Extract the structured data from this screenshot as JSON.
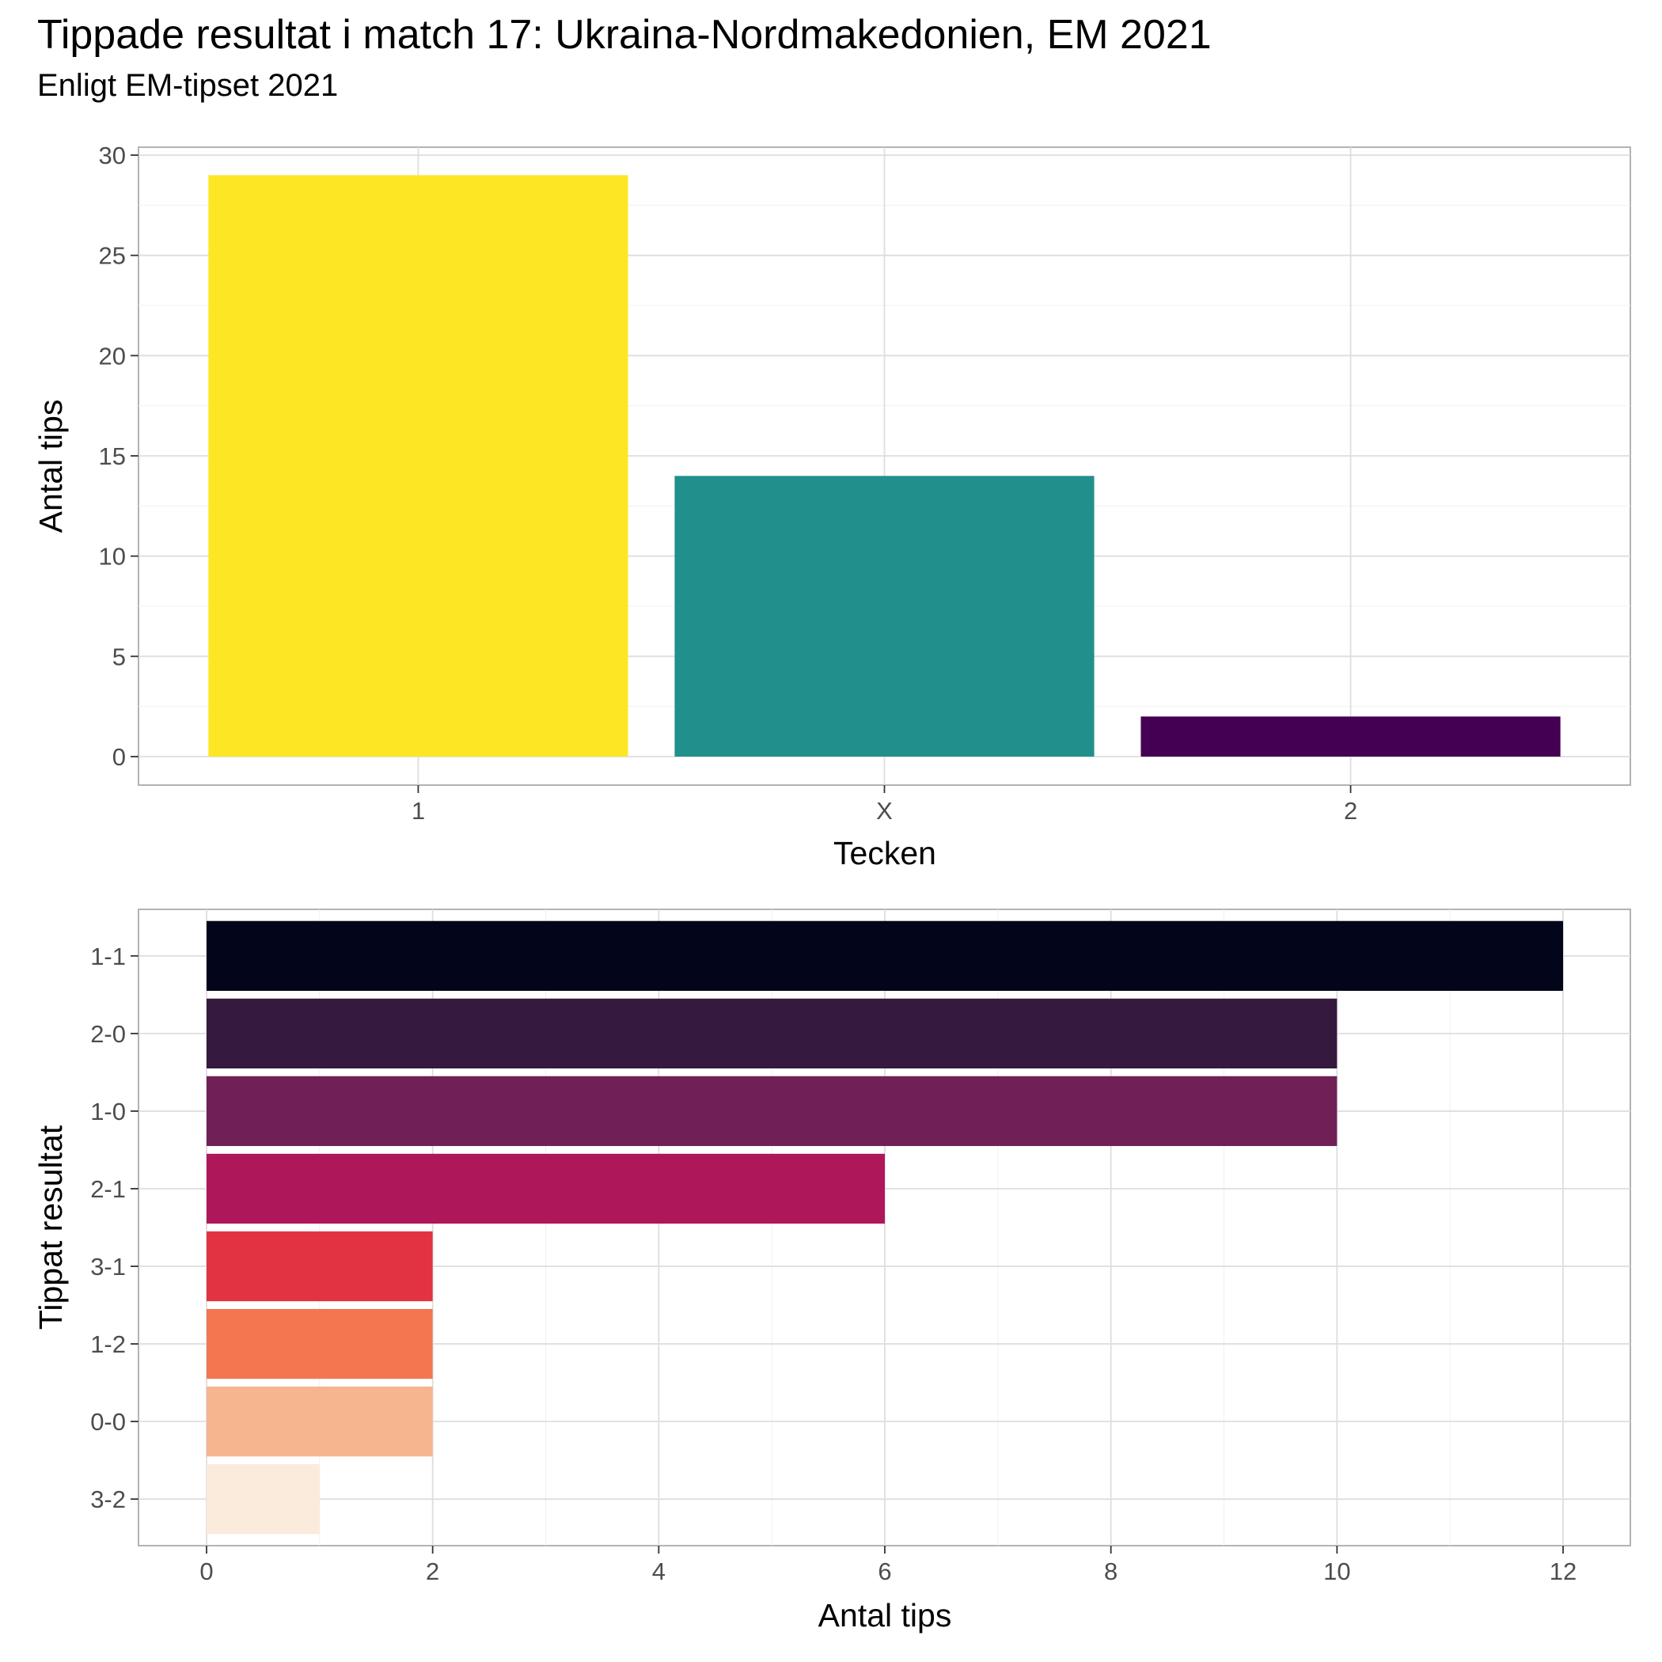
{
  "header": {
    "title": "Tippade resultat i match 17: Ukraina-Nordmakedonien, EM 2021",
    "subtitle": "Enligt EM-tipset 2021"
  },
  "chart_data": [
    {
      "type": "bar",
      "orientation": "vertical",
      "categories": [
        "1",
        "X",
        "2"
      ],
      "values": [
        29,
        14,
        2
      ],
      "colors": [
        "#FDE725",
        "#21908C",
        "#440154"
      ],
      "xlabel": "Tecken",
      "ylabel": "Antal tips",
      "ylim": [
        0,
        30
      ],
      "yticks": [
        0,
        5,
        10,
        15,
        20,
        25,
        30
      ],
      "grid": true
    },
    {
      "type": "bar",
      "orientation": "horizontal",
      "categories": [
        "1-1",
        "2-0",
        "1-0",
        "2-1",
        "3-1",
        "1-2",
        "0-0",
        "3-2"
      ],
      "values": [
        12,
        10,
        10,
        6,
        2,
        2,
        2,
        1
      ],
      "colors": [
        "#03051A",
        "#36193E",
        "#701F57",
        "#AE1759",
        "#E13342",
        "#F37651",
        "#F6B48F",
        "#FAEBDD"
      ],
      "xlabel": "Antal tips",
      "ylabel": "Tippat resultat",
      "xlim": [
        0,
        12
      ],
      "xticks": [
        0,
        2,
        4,
        6,
        8,
        10,
        12
      ],
      "grid": true
    }
  ]
}
